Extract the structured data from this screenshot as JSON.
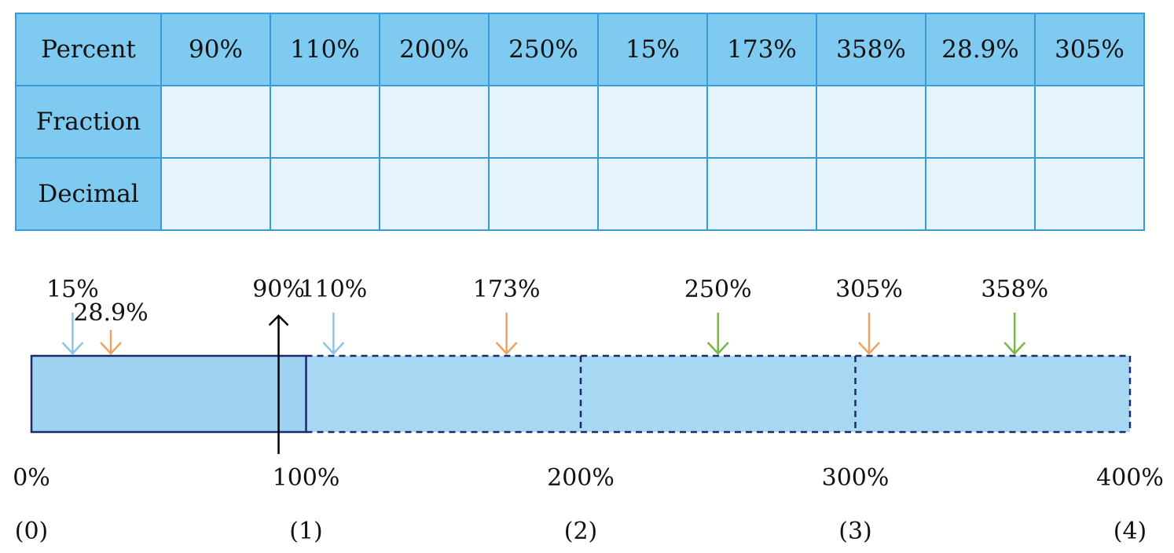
{
  "table": {
    "rows": [
      [
        "Percent",
        "90%",
        "110%",
        "200%",
        "250%",
        "15%",
        "173%",
        "358%",
        "28.9%",
        "305%"
      ],
      [
        "Fraction"
      ],
      [
        "Decimal"
      ]
    ]
  },
  "number_line": {
    "range": [
      0,
      400
    ],
    "markers": [
      {
        "label": "15%",
        "value": 15,
        "color": "#8cc4e6"
      },
      {
        "label": "28.9%",
        "value": 28.9,
        "color": "#f0a35e"
      },
      {
        "label": "90%",
        "value": 90,
        "color": "#000000",
        "direction": "up"
      },
      {
        "label": "110%",
        "value": 110,
        "color": "#8cc4e6"
      },
      {
        "label": "173%",
        "value": 173,
        "color": "#f0a35e"
      },
      {
        "label": "250%",
        "value": 250,
        "color": "#7ab648"
      },
      {
        "label": "305%",
        "value": 305,
        "color": "#f0a35e"
      },
      {
        "label": "358%",
        "value": 358,
        "color": "#7ab648"
      }
    ],
    "ticks": [
      {
        "value": 0,
        "label": "0%",
        "whole": "(0)"
      },
      {
        "value": 100,
        "label": "100%",
        "whole": "(1)"
      },
      {
        "value": 200,
        "label": "200%",
        "whole": "(2)"
      },
      {
        "value": 300,
        "label": "300%",
        "whole": "(3)"
      },
      {
        "value": 400,
        "label": "400%",
        "whole": "(4)"
      }
    ]
  }
}
